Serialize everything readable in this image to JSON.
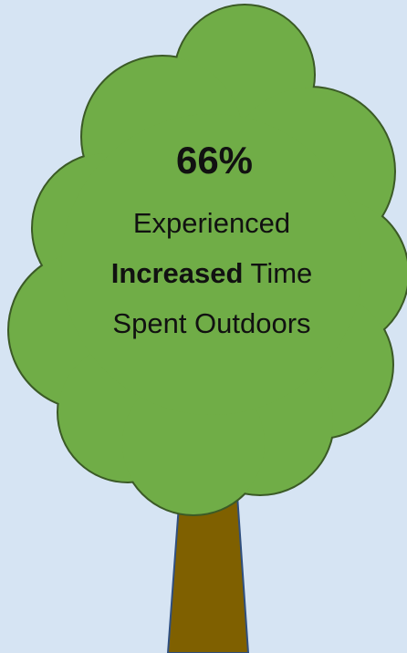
{
  "stat": "66%",
  "line1": "Experienced",
  "line2_bold": "Increased",
  "line2_rest": "Time",
  "line3": "Spent Outdoors"
}
